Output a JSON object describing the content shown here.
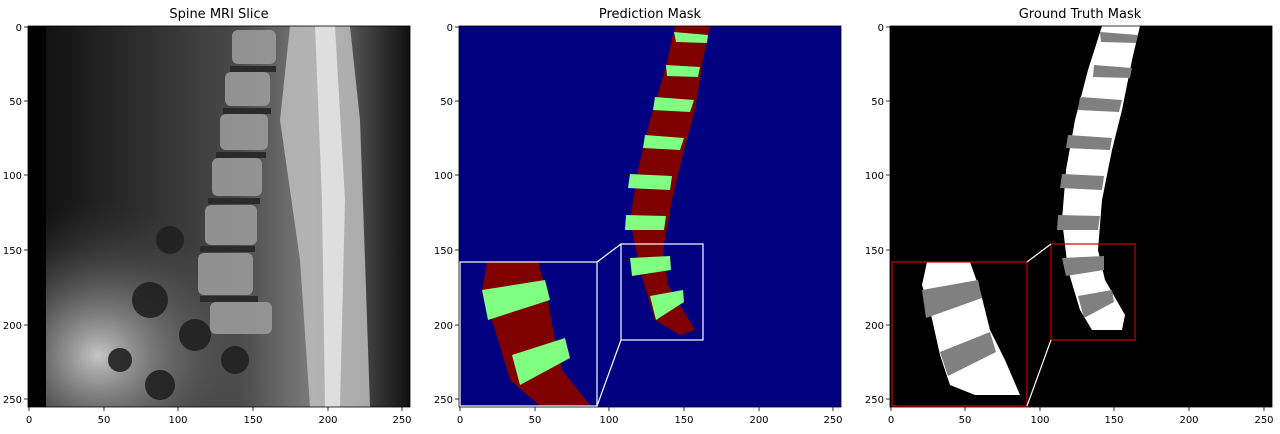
{
  "panels": [
    {
      "title": "Spine MRI Slice",
      "x_ticks": [
        "0",
        "50",
        "100",
        "150",
        "200",
        "250"
      ],
      "y_ticks": [
        "0",
        "50",
        "100",
        "150",
        "200",
        "250"
      ]
    },
    {
      "title": "Prediction Mask",
      "x_ticks": [
        "0",
        "50",
        "100",
        "150",
        "200",
        "250"
      ],
      "y_ticks": [
        "0",
        "50",
        "100",
        "150",
        "200",
        "250"
      ],
      "colors": {
        "background": "#000080",
        "vertebra": "#800000",
        "disc": "#80ff80",
        "inset_border": "#ffffff"
      }
    },
    {
      "title": "Ground Truth Mask",
      "x_ticks": [
        "0",
        "50",
        "100",
        "150",
        "200",
        "250"
      ],
      "y_ticks": [
        "0",
        "50",
        "100",
        "150",
        "200",
        "250"
      ],
      "colors": {
        "background": "#000000",
        "vertebra": "#ffffff",
        "disc": "#808080",
        "inset_border": "#cc0000"
      }
    }
  ]
}
